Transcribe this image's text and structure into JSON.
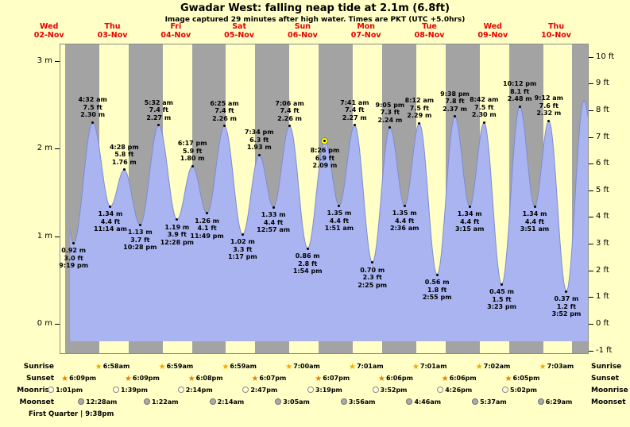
{
  "title": "Gwadar West: falling  neap tide at 2.1m (6.8ft)",
  "subtitle": "Image captured 29 minutes after high water. Times are PKT (UTC +5.0hrs)",
  "moon_phase": "First Quarter | 9:38pm",
  "colors": {
    "background": "#ffffc6",
    "night_band": "#a3a3a3",
    "tide_fill": "#a9b4f1",
    "tide_stroke": "#7f8cd0",
    "day_label_red": "#e80000",
    "sunrise_star": "#f2a900",
    "sunset_star": "#e28200",
    "moonrise_fill": "#ffffdd",
    "moonrise_border": "#8a8a8a",
    "moonset_fill": "#ababab",
    "moonset_border": "#6f6f6f",
    "current_marker_fill": "#ffff33",
    "current_marker_border": "#8f8f00"
  },
  "chart_data": {
    "type": "area",
    "title": "Gwadar West: falling  neap tide at 2.1m (6.8ft)",
    "subtitle": "Image captured 29 minutes after high water. Times are PKT (UTC +5.0hrs)",
    "x_axis": "days Nov 02 - Nov 10, alternating day/night shading",
    "ylim_m": [
      -0.35,
      3.2
    ],
    "grid": false,
    "yticks_left_m": [
      {
        "label": "0 m",
        "m": 0
      },
      {
        "label": "1 m",
        "m": 1
      },
      {
        "label": "2 m",
        "m": 2
      },
      {
        "label": "3 m",
        "m": 3
      }
    ],
    "yticks_right_ft": [
      {
        "label": "-1 ft",
        "ft": -1
      },
      {
        "label": "0 ft",
        "ft": 0
      },
      {
        "label": "1 ft",
        "ft": 1
      },
      {
        "label": "2 ft",
        "ft": 2
      },
      {
        "label": "3 ft",
        "ft": 3
      },
      {
        "label": "4 ft",
        "ft": 4
      },
      {
        "label": "5 ft",
        "ft": 5
      },
      {
        "label": "6 ft",
        "ft": 6
      },
      {
        "label": "7 ft",
        "ft": 7
      },
      {
        "label": "8 ft",
        "ft": 8
      },
      {
        "label": "9 ft",
        "ft": 9
      },
      {
        "label": "10 ft",
        "ft": 10
      }
    ],
    "day_labels": [
      {
        "dow": "Wed",
        "date": "02-Nov",
        "d": 2
      },
      {
        "dow": "Thu",
        "date": "03-Nov",
        "d": 3
      },
      {
        "dow": "Fri",
        "date": "04-Nov",
        "d": 4
      },
      {
        "dow": "Sat",
        "date": "05-Nov",
        "d": 5
      },
      {
        "dow": "Sun",
        "date": "06-Nov",
        "d": 6
      },
      {
        "dow": "Mon",
        "date": "07-Nov",
        "d": 7
      },
      {
        "dow": "Tue",
        "date": "08-Nov",
        "d": 8
      },
      {
        "dow": "Wed",
        "date": "09-Nov",
        "d": 9
      },
      {
        "dow": "Thu",
        "date": "10-Nov",
        "d": 10
      }
    ],
    "tide_events": [
      {
        "d": 2,
        "type": "low",
        "time": "9:19 pm",
        "m": "0.92 m",
        "ft": "3.0 ft"
      },
      {
        "d": 3,
        "type": "high",
        "time": "4:32 am",
        "m": "2.30 m",
        "ft": "7.5 ft"
      },
      {
        "d": 3,
        "type": "low",
        "time": "11:14 am",
        "m": "1.34 m",
        "ft": "4.4 ft"
      },
      {
        "d": 3,
        "type": "high",
        "time": "4:28 pm",
        "m": "1.76 m",
        "ft": "5.8 ft"
      },
      {
        "d": 3,
        "type": "low",
        "time": "10:28 pm",
        "m": "1.13 m",
        "ft": "3.7 ft"
      },
      {
        "d": 4,
        "type": "high",
        "time": "5:32 am",
        "m": "2.27 m",
        "ft": "7.4 ft"
      },
      {
        "d": 4,
        "type": "low",
        "time": "12:28 pm",
        "m": "1.19 m",
        "ft": "3.9 ft"
      },
      {
        "d": 4,
        "type": "high",
        "time": "6:17 pm",
        "m": "1.80 m",
        "ft": "5.9 ft"
      },
      {
        "d": 4,
        "type": "low",
        "time": "11:49 pm",
        "m": "1.26 m",
        "ft": "4.1 ft"
      },
      {
        "d": 5,
        "type": "high",
        "time": "6:25 am",
        "m": "2.26 m",
        "ft": "7.4 ft"
      },
      {
        "d": 5,
        "type": "low",
        "time": "1:17 pm",
        "m": "1.02 m",
        "ft": "3.3 ft"
      },
      {
        "d": 5,
        "type": "high",
        "time": "7:34 pm",
        "m": "1.93 m",
        "ft": "6.3 ft"
      },
      {
        "d": 6,
        "type": "low",
        "time": "12:57 am",
        "m": "1.33 m",
        "ft": "4.4 ft"
      },
      {
        "d": 6,
        "type": "high",
        "time": "7:06 am",
        "m": "2.26 m",
        "ft": "7.4 ft"
      },
      {
        "d": 6,
        "type": "low",
        "time": "1:54 pm",
        "m": "0.86 m",
        "ft": "2.8 ft"
      },
      {
        "d": 6,
        "type": "high",
        "time": "8:26 pm",
        "m": "2.09 m",
        "ft": "6.9 ft",
        "current": true
      },
      {
        "d": 7,
        "type": "low",
        "time": "1:51 am",
        "m": "1.35 m",
        "ft": "4.4 ft"
      },
      {
        "d": 7,
        "type": "high",
        "time": "7:41 am",
        "m": "2.27 m",
        "ft": "7.4 ft"
      },
      {
        "d": 7,
        "type": "low",
        "time": "2:25 pm",
        "m": "0.70 m",
        "ft": "2.3 ft"
      },
      {
        "d": 7,
        "type": "high",
        "time": "9:05 pm",
        "m": "2.24 m",
        "ft": "7.3 ft"
      },
      {
        "d": 8,
        "type": "low",
        "time": "2:36 am",
        "m": "1.35 m",
        "ft": "4.4 ft"
      },
      {
        "d": 8,
        "type": "high",
        "time": "8:12 am",
        "m": "2.29 m",
        "ft": "7.5 ft"
      },
      {
        "d": 8,
        "type": "low",
        "time": "2:55 pm",
        "m": "0.56 m",
        "ft": "1.8 ft"
      },
      {
        "d": 8,
        "type": "high",
        "time": "9:38 pm",
        "m": "2.37 m",
        "ft": "7.8 ft"
      },
      {
        "d": 9,
        "type": "low",
        "time": "3:15 am",
        "m": "1.34 m",
        "ft": "4.4 ft"
      },
      {
        "d": 9,
        "type": "high",
        "time": "8:42 am",
        "m": "2.30 m",
        "ft": "7.5 ft"
      },
      {
        "d": 9,
        "type": "low",
        "time": "3:23 pm",
        "m": "0.45 m",
        "ft": "1.5 ft"
      },
      {
        "d": 9,
        "type": "high",
        "time": "10:12 pm",
        "m": "2.48 m",
        "ft": "8.1 ft"
      },
      {
        "d": 10,
        "type": "low",
        "time": "3:51 am",
        "m": "1.34 m",
        "ft": "4.4 ft"
      },
      {
        "d": 10,
        "type": "high",
        "time": "9:12 am",
        "m": "2.32 m",
        "ft": "7.6 ft"
      },
      {
        "d": 10,
        "type": "low",
        "time": "3:52 pm",
        "m": "0.37 m",
        "ft": "1.2 ft"
      }
    ],
    "astronomy": {
      "sunrise": {
        "label": "Sunrise",
        "events": [
          {
            "d": 3,
            "time": "6:58am"
          },
          {
            "d": 4,
            "time": "6:59am"
          },
          {
            "d": 5,
            "time": "6:59am"
          },
          {
            "d": 6,
            "time": "7:00am"
          },
          {
            "d": 7,
            "time": "7:01am"
          },
          {
            "d": 8,
            "time": "7:01am"
          },
          {
            "d": 9,
            "time": "7:02am"
          },
          {
            "d": 10,
            "time": "7:03am"
          }
        ]
      },
      "sunset": {
        "label": "Sunset",
        "events": [
          {
            "d": 2,
            "time": "6:09pm"
          },
          {
            "d": 3,
            "time": "6:09pm"
          },
          {
            "d": 4,
            "time": "6:08pm"
          },
          {
            "d": 5,
            "time": "6:07pm"
          },
          {
            "d": 6,
            "time": "6:07pm"
          },
          {
            "d": 7,
            "time": "6:06pm"
          },
          {
            "d": 8,
            "time": "6:06pm"
          },
          {
            "d": 9,
            "time": "6:05pm"
          }
        ]
      },
      "moonrise": {
        "label": "Moonrise",
        "events": [
          {
            "d": 2,
            "time": "1:01pm"
          },
          {
            "d": 3,
            "time": "1:39pm"
          },
          {
            "d": 4,
            "time": "2:14pm"
          },
          {
            "d": 5,
            "time": "2:47pm"
          },
          {
            "d": 6,
            "time": "3:19pm"
          },
          {
            "d": 7,
            "time": "3:52pm"
          },
          {
            "d": 8,
            "time": "4:26pm"
          },
          {
            "d": 9,
            "time": "5:02pm"
          }
        ]
      },
      "moonset": {
        "label": "Moonset",
        "events": [
          {
            "d": 3,
            "time": "12:28am"
          },
          {
            "d": 4,
            "time": "1:22am"
          },
          {
            "d": 5,
            "time": "2:14am"
          },
          {
            "d": 6,
            "time": "3:05am"
          },
          {
            "d": 7,
            "time": "3:56am"
          },
          {
            "d": 8,
            "time": "4:46am"
          },
          {
            "d": 9,
            "time": "5:37am"
          },
          {
            "d": 10,
            "time": "6:29am"
          }
        ]
      }
    },
    "moon_phase": "First Quarter | 9:38pm"
  }
}
